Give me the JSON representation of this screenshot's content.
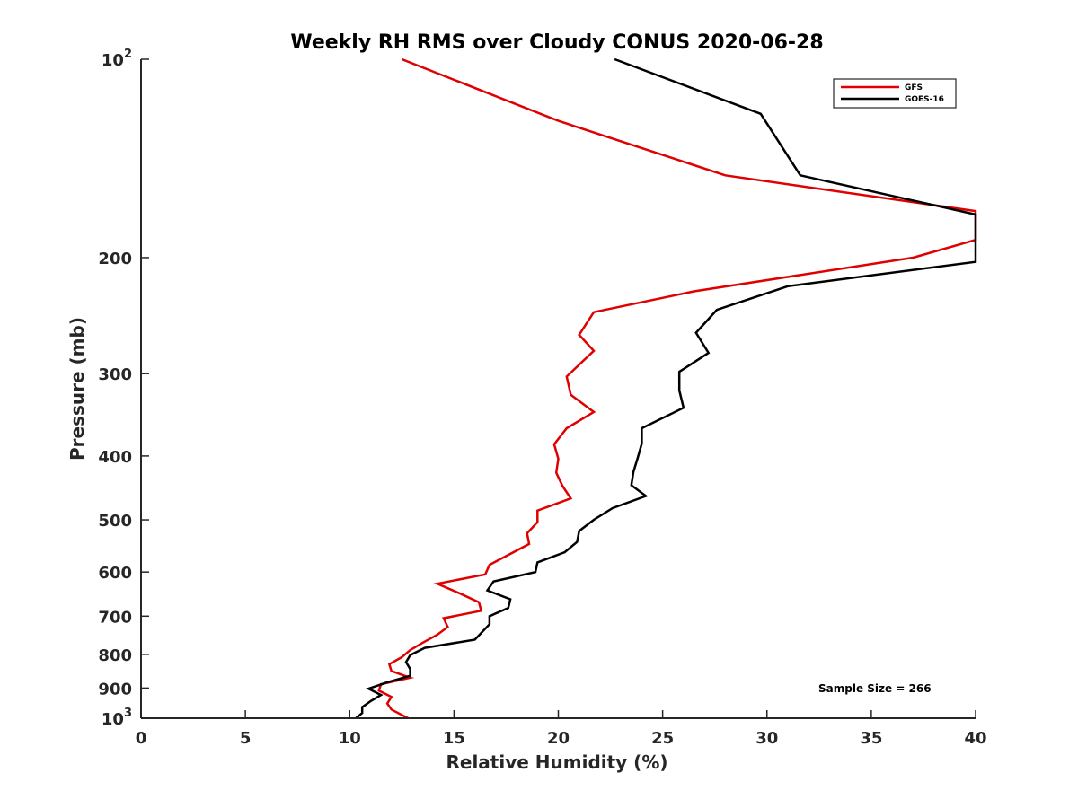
{
  "chart_data": {
    "type": "line",
    "title": "Weekly RH RMS over Cloudy CONUS 2020-06-28",
    "xlabel": "Relative Humidity (%)",
    "ylabel": "Pressure (mb)",
    "xlim": [
      0,
      40
    ],
    "ylim": [
      1000,
      100
    ],
    "yscale": "log",
    "y_reversed": true,
    "grid": false,
    "legend_position": "top-right",
    "x_ticks": [
      "0",
      "5",
      "10",
      "15",
      "20",
      "25",
      "30",
      "35",
      "40"
    ],
    "y_ticks": [
      {
        "value": 100,
        "base": "10",
        "exp": "2"
      },
      {
        "value": 200,
        "label": "200"
      },
      {
        "value": 300,
        "label": "300"
      },
      {
        "value": 400,
        "label": "400"
      },
      {
        "value": 500,
        "label": "500"
      },
      {
        "value": 600,
        "label": "600"
      },
      {
        "value": 700,
        "label": "700"
      },
      {
        "value": 800,
        "label": "800"
      },
      {
        "value": 900,
        "label": "900"
      },
      {
        "value": 1000,
        "base": "10",
        "exp": "3"
      }
    ],
    "annotation": "Sample Size = 266",
    "series": [
      {
        "name": "GFS",
        "color": "#e00000",
        "points": [
          [
            12.5,
            100
          ],
          [
            20,
            124
          ],
          [
            28,
            150
          ],
          [
            40,
            170
          ],
          [
            40,
            188
          ],
          [
            37,
            200
          ],
          [
            26.5,
            225
          ],
          [
            21.7,
            242
          ],
          [
            21,
            262
          ],
          [
            21.7,
            277
          ],
          [
            20.4,
            303
          ],
          [
            20.6,
            323
          ],
          [
            21.7,
            343
          ],
          [
            20.4,
            363
          ],
          [
            19.8,
            384
          ],
          [
            20.0,
            404
          ],
          [
            19.9,
            424
          ],
          [
            20.2,
            444
          ],
          [
            20.6,
            464
          ],
          [
            19.0,
            484
          ],
          [
            19.0,
            504
          ],
          [
            18.5,
            524
          ],
          [
            18.6,
            544
          ],
          [
            16.7,
            585
          ],
          [
            16.5,
            605
          ],
          [
            14.2,
            625
          ],
          [
            15.3,
            647
          ],
          [
            16.2,
            667
          ],
          [
            16.3,
            687
          ],
          [
            14.5,
            705
          ],
          [
            14.7,
            727
          ],
          [
            14.2,
            747
          ],
          [
            13.5,
            768
          ],
          [
            12.9,
            788
          ],
          [
            12.5,
            808
          ],
          [
            11.9,
            828
          ],
          [
            12.0,
            848
          ],
          [
            12.9,
            868
          ],
          [
            11.5,
            888
          ],
          [
            11.4,
            908
          ],
          [
            12.0,
            928
          ],
          [
            11.8,
            950
          ],
          [
            12.0,
            970
          ],
          [
            12.8,
            1000
          ]
        ]
      },
      {
        "name": "GOES-16",
        "color": "#000000",
        "points": [
          [
            22.7,
            100
          ],
          [
            29.7,
            121
          ],
          [
            31.6,
            150
          ],
          [
            40,
            172
          ],
          [
            40,
            203
          ],
          [
            31,
            221
          ],
          [
            27.6,
            240
          ],
          [
            26.6,
            260
          ],
          [
            27.2,
            279
          ],
          [
            25.8,
            298
          ],
          [
            25.8,
            318
          ],
          [
            26.0,
            338
          ],
          [
            24.0,
            363
          ],
          [
            24.0,
            383
          ],
          [
            23.8,
            403
          ],
          [
            23.6,
            423
          ],
          [
            23.5,
            443
          ],
          [
            24.2,
            460
          ],
          [
            22.6,
            480
          ],
          [
            21.7,
            500
          ],
          [
            21.0,
            520
          ],
          [
            20.9,
            540
          ],
          [
            20.3,
            560
          ],
          [
            19.0,
            580
          ],
          [
            18.9,
            600
          ],
          [
            16.9,
            620
          ],
          [
            16.6,
            640
          ],
          [
            17.7,
            660
          ],
          [
            17.6,
            680
          ],
          [
            16.7,
            700
          ],
          [
            16.7,
            720
          ],
          [
            16.0,
            760
          ],
          [
            13.6,
            782
          ],
          [
            12.9,
            802
          ],
          [
            12.7,
            822
          ],
          [
            12.9,
            842
          ],
          [
            12.9,
            862
          ],
          [
            11.8,
            882
          ],
          [
            10.9,
            902
          ],
          [
            11.5,
            922
          ],
          [
            11.0,
            942
          ],
          [
            10.6,
            962
          ],
          [
            10.6,
            982
          ],
          [
            10.3,
            1000
          ]
        ]
      }
    ]
  }
}
